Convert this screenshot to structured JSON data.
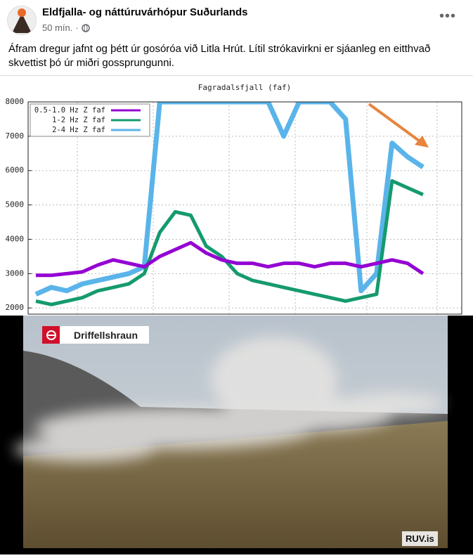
{
  "post": {
    "author": "Eldfjalla- og náttúruvárhópur Suðurlands",
    "time": "50 mín.",
    "text": "Áfram dregur jafnt og þétt úr gosóróa við Litla Hrút. Lítil strókavirkni er sjáanleg en eitthvað skvettist þó úr miðri gossprungunni."
  },
  "chart_data": {
    "type": "line",
    "title": "Fagradalsfjall (faf)",
    "categories": [
      null,
      null,
      null,
      null,
      null,
      null,
      null,
      null,
      null,
      null,
      null,
      null,
      null,
      null,
      null,
      null,
      null,
      null,
      null,
      null,
      null,
      null,
      null,
      null,
      null,
      null,
      null,
      null
    ],
    "series": [
      {
        "name": "0.5-1.0 Hz Z faf",
        "color": "#9400d3",
        "values": [
          2950,
          2950,
          3000,
          3050,
          3250,
          3400,
          3300,
          3200,
          3500,
          3700,
          3900,
          3600,
          3400,
          3300,
          3300,
          3200,
          3300,
          3300,
          3200,
          3300,
          3300,
          3200,
          3300,
          3400,
          3300,
          3000,
          null,
          null
        ]
      },
      {
        "name": "1-2 Hz Z faf",
        "color": "#159a6f",
        "values": [
          2200,
          2100,
          2200,
          2300,
          2500,
          2600,
          2700,
          3000,
          4200,
          4800,
          4700,
          3800,
          3500,
          3000,
          2800,
          2700,
          2600,
          2500,
          2400,
          2300,
          2200,
          2300,
          2400,
          5700,
          5500,
          5300,
          null,
          null
        ]
      },
      {
        "name": "2-4 Hz Z faf",
        "color": "#5ab4ea",
        "values": [
          2400,
          2600,
          2500,
          2700,
          2800,
          2900,
          3000,
          3200,
          8000,
          8000,
          8000,
          8000,
          8000,
          8000,
          8000,
          8000,
          7000,
          8000,
          8000,
          8000,
          7500,
          2500,
          3000,
          6800,
          6400,
          6100,
          null,
          null
        ]
      }
    ],
    "ylim": [
      1820,
      8000
    ],
    "yticks": [
      2000,
      3000,
      4000,
      5000,
      6000,
      7000,
      8000
    ],
    "grid": true,
    "legend": "upper left"
  },
  "photo": {
    "location": "Driffellshraun",
    "watermark": "RUV.is"
  }
}
